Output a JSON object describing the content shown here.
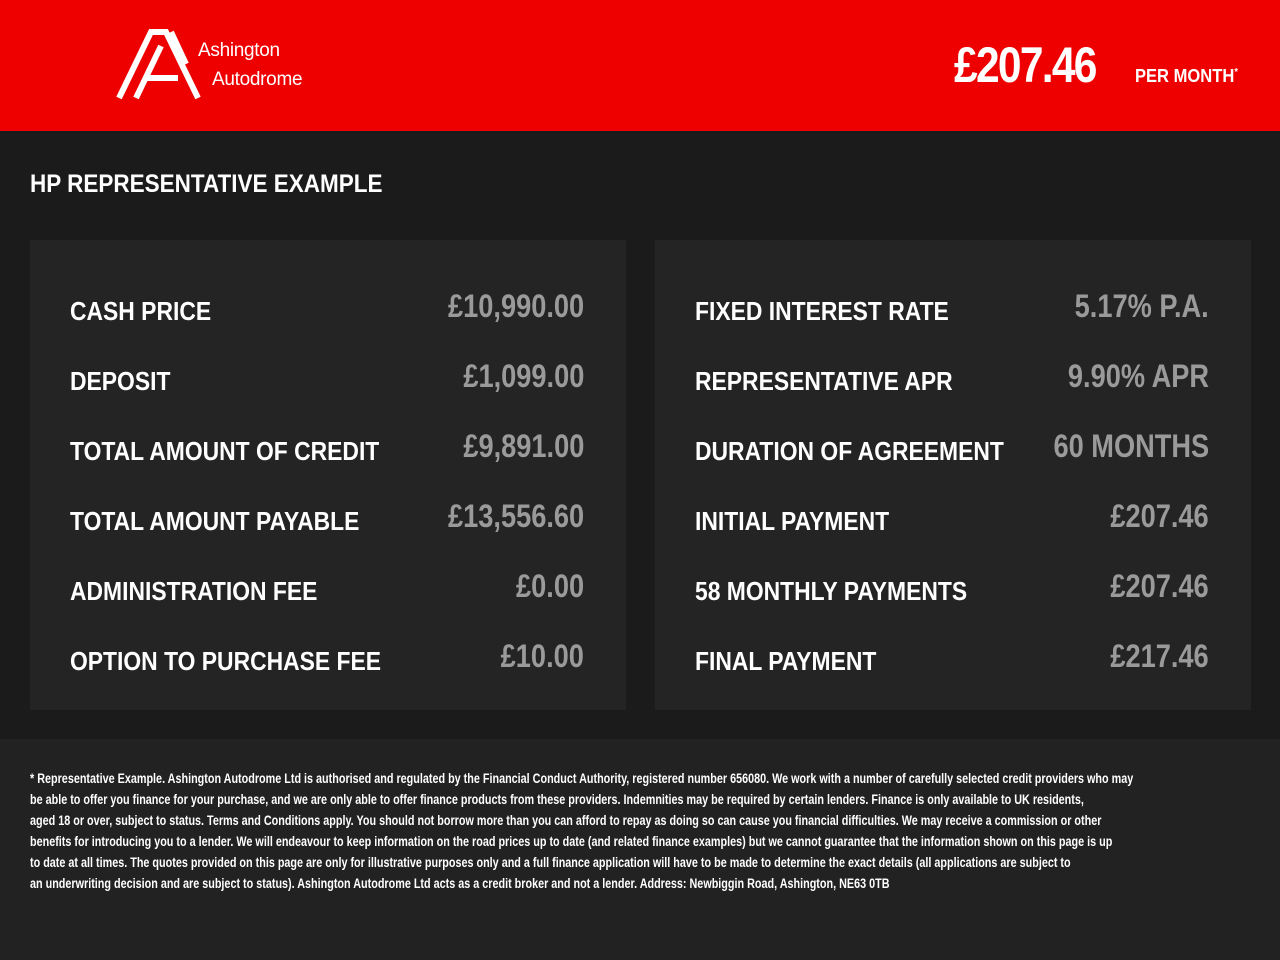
{
  "header": {
    "logo": {
      "line1": "Ashington",
      "line2": "Autodrome"
    },
    "price": "£207.46",
    "per_month": "PER MONTH",
    "asterisk": "*",
    "brand_color": "#ee0000"
  },
  "title": "HP REPRESENTATIVE EXAMPLE",
  "left": [
    {
      "label": "CASH PRICE",
      "value": "£10,990.00"
    },
    {
      "label": "DEPOSIT",
      "value": "£1,099.00"
    },
    {
      "label": "TOTAL AMOUNT OF CREDIT",
      "value": "£9,891.00"
    },
    {
      "label": "TOTAL AMOUNT PAYABLE",
      "value": "£13,556.60"
    },
    {
      "label": "ADMINISTRATION FEE",
      "value": "£0.00"
    },
    {
      "label": "OPTION TO PURCHASE FEE",
      "value": "£10.00"
    }
  ],
  "right": [
    {
      "label": "FIXED INTEREST RATE",
      "value": "5.17% P.A."
    },
    {
      "label": "REPRESENTATIVE APR",
      "value": "9.90% APR"
    },
    {
      "label": "DURATION OF AGREEMENT",
      "value": "60 MONTHS"
    },
    {
      "label": "INITIAL PAYMENT",
      "value": "£207.46"
    },
    {
      "label": "58 MONTHLY PAYMENTS",
      "value": "£207.46"
    },
    {
      "label": "FINAL PAYMENT",
      "value": "£217.46"
    }
  ],
  "disclaimer": [
    "* Representative Example. Ashington Autodrome Ltd is authorised and regulated by the Financial Conduct Authority, registered number 656080. We work with a number of carefully selected credit providers who may",
    "be able to offer you finance for your purchase, and we are only able to offer finance products from these providers. Indemnities may be required by certain lenders. Finance is only available to UK residents,",
    "aged 18 or over, subject to status. Terms and Conditions apply. You should not borrow more than you can afford to repay as doing so can cause you financial difficulties. We may receive a commission or other",
    "benefits for introducing you to a lender. We will endeavour to keep information on the road prices up to date (and related finance examples) but we cannot guarantee that the information shown on this page is up",
    "to date at all times. The quotes provided on this page are only for illustrative purposes only and a full finance application will have to be made to determine the exact details (all applications are subject to",
    "an underwriting decision and are subject to status). Ashington Autodrome Ltd acts as a credit broker and not a lender. Address: Newbiggin Road, Ashington, NE63 0TB"
  ]
}
